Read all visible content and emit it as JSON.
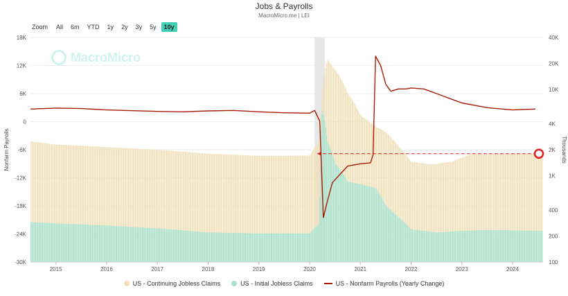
{
  "header": {
    "title": "Jobs & Payrolls",
    "subtitle": "MacroMicro.me | LEI"
  },
  "range_selector": {
    "zoom_label": "Zoom",
    "buttons": [
      "All",
      "6m",
      "YTD",
      "1y",
      "2y",
      "3y",
      "5y",
      "10y"
    ],
    "active": "10y"
  },
  "watermark": {
    "text": "MacroMicro"
  },
  "colors": {
    "continuing": "#efe0b9",
    "initial": "#a9e3d0",
    "payrolls": "#a61b05",
    "guide": "#e02020",
    "covid_band": "#e6e6e6"
  },
  "chart_data": {
    "type": "bar+line",
    "x_ticks": [
      "2015",
      "2016",
      "2017",
      "2018",
      "2019",
      "2020",
      "2021",
      "2022",
      "2023",
      "2024"
    ],
    "x_range": [
      2014.5,
      2024.6
    ],
    "left_axis": {
      "title": "Nonfarm Payrolls",
      "range": [
        -30000,
        18000
      ],
      "ticks": [
        "18K",
        "12K",
        "6K",
        "0",
        "-6K",
        "-12K",
        "-18K",
        "-24K",
        "-30K"
      ]
    },
    "right_axis": {
      "title": "Thousands",
      "scale": "log",
      "range": [
        100,
        40000
      ],
      "ticks": [
        {
          "value": 40000,
          "label": "40K"
        },
        {
          "value": 20000,
          "label": "20K"
        },
        {
          "value": 10000,
          "label": "10K"
        },
        {
          "value": 4000,
          "label": "4K"
        },
        {
          "value": 2000,
          "label": "2K"
        },
        {
          "value": 1000,
          "label": "1K"
        },
        {
          "value": 400,
          "label": "400"
        },
        {
          "value": 200,
          "label": "200"
        },
        {
          "value": 100,
          "label": "100"
        }
      ]
    },
    "series": [
      {
        "name": "US - Continuing Jobless Claims",
        "type": "bar",
        "axis": "right",
        "points": [
          [
            2014.5,
            2500
          ],
          [
            2015,
            2300
          ],
          [
            2016,
            2150
          ],
          [
            2017,
            2000
          ],
          [
            2018,
            1800
          ],
          [
            2019,
            1700
          ],
          [
            2019.5,
            1700
          ],
          [
            2020.0,
            1720
          ],
          [
            2020.2,
            2500
          ],
          [
            2020.25,
            9000
          ],
          [
            2020.35,
            22000
          ],
          [
            2020.5,
            17000
          ],
          [
            2020.75,
            9000
          ],
          [
            2021,
            5000
          ],
          [
            2021.3,
            3700
          ],
          [
            2021.5,
            3200
          ],
          [
            2021.75,
            2200
          ],
          [
            2022,
            1450
          ],
          [
            2022.4,
            1350
          ],
          [
            2022.8,
            1450
          ],
          [
            2023.2,
            1780
          ],
          [
            2023.6,
            1780
          ],
          [
            2024.6,
            1800
          ]
        ]
      },
      {
        "name": "US - Initial Jobless Claims",
        "type": "bar",
        "axis": "right",
        "points": [
          [
            2014.5,
            290
          ],
          [
            2015,
            280
          ],
          [
            2016,
            265
          ],
          [
            2017,
            245
          ],
          [
            2018,
            220
          ],
          [
            2019,
            215
          ],
          [
            2020.0,
            215
          ],
          [
            2020.2,
            280
          ],
          [
            2020.22,
            3300
          ],
          [
            2020.25,
            6000
          ],
          [
            2020.35,
            2500
          ],
          [
            2020.5,
            1400
          ],
          [
            2020.75,
            850
          ],
          [
            2021,
            800
          ],
          [
            2021.3,
            720
          ],
          [
            2021.5,
            450
          ],
          [
            2021.75,
            330
          ],
          [
            2022,
            240
          ],
          [
            2022.5,
            220
          ],
          [
            2023,
            230
          ],
          [
            2023.5,
            235
          ],
          [
            2024.6,
            230
          ]
        ]
      },
      {
        "name": "US - Nonfarm Payrolls (Yearly Change)",
        "type": "line",
        "axis": "left",
        "points": [
          [
            2014.5,
            2700
          ],
          [
            2015,
            2900
          ],
          [
            2015.5,
            2800
          ],
          [
            2016,
            2500
          ],
          [
            2017,
            2200
          ],
          [
            2017.5,
            2100
          ],
          [
            2018,
            2300
          ],
          [
            2018.5,
            2400
          ],
          [
            2019,
            2100
          ],
          [
            2019.5,
            1900
          ],
          [
            2020.0,
            1800
          ],
          [
            2020.1,
            2400
          ],
          [
            2020.2,
            100
          ],
          [
            2020.27,
            -20500
          ],
          [
            2020.35,
            -17000
          ],
          [
            2020.45,
            -13000
          ],
          [
            2020.75,
            -9500
          ],
          [
            2021,
            -9000
          ],
          [
            2021.2,
            -8800
          ],
          [
            2021.25,
            -7000
          ],
          [
            2021.3,
            14000
          ],
          [
            2021.4,
            12000
          ],
          [
            2021.5,
            8000
          ],
          [
            2021.6,
            6500
          ],
          [
            2021.75,
            7000
          ],
          [
            2021.9,
            7000
          ],
          [
            2022,
            7200
          ],
          [
            2022.25,
            7000
          ],
          [
            2022.5,
            6000
          ],
          [
            2022.75,
            5000
          ],
          [
            2023,
            4000
          ],
          [
            2023.5,
            3000
          ],
          [
            2024,
            2500
          ],
          [
            2024.45,
            2700
          ]
        ]
      }
    ],
    "shaded_regions": [
      [
        2020.1,
        2020.3
      ]
    ],
    "reference_line": {
      "value": 1800,
      "axis": "right"
    },
    "legend_position": "bottom"
  }
}
